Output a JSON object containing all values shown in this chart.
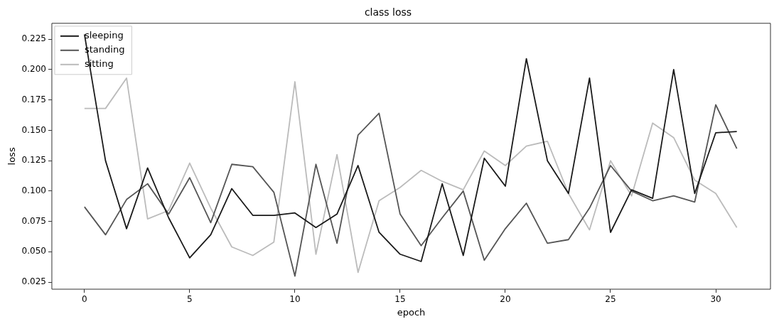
{
  "chart_data": {
    "type": "line",
    "title": "class loss",
    "xlabel": "epoch",
    "ylabel": "loss",
    "x": [
      0,
      1,
      2,
      3,
      4,
      5,
      6,
      7,
      8,
      9,
      10,
      11,
      12,
      13,
      14,
      15,
      16,
      17,
      18,
      19,
      20,
      21,
      22,
      23,
      24,
      25,
      26,
      27,
      28,
      29,
      30,
      31
    ],
    "series": [
      {
        "name": "sleeping",
        "color": "#1a1a1a",
        "values": [
          0.229,
          0.125,
          0.069,
          0.119,
          0.078,
          0.045,
          0.064,
          0.102,
          0.08,
          0.08,
          0.082,
          0.07,
          0.081,
          0.121,
          0.066,
          0.048,
          0.042,
          0.106,
          0.047,
          0.127,
          0.104,
          0.209,
          0.125,
          0.098,
          0.193,
          0.066,
          0.101,
          0.094,
          0.2,
          0.098,
          0.148,
          0.149
        ]
      },
      {
        "name": "standing",
        "color": "#555555",
        "values": [
          0.087,
          0.064,
          0.093,
          0.106,
          0.081,
          0.111,
          0.074,
          0.122,
          0.12,
          0.099,
          0.03,
          0.122,
          0.057,
          0.146,
          0.164,
          0.081,
          0.055,
          0.078,
          0.1,
          0.043,
          0.069,
          0.09,
          0.057,
          0.06,
          0.086,
          0.121,
          0.1,
          0.092,
          0.096,
          0.091,
          0.171,
          0.135
        ]
      },
      {
        "name": "sitting",
        "color": "#bbbbbb",
        "values": [
          0.168,
          0.168,
          0.193,
          0.077,
          0.084,
          0.123,
          0.086,
          0.054,
          0.047,
          0.058,
          0.19,
          0.048,
          0.13,
          0.033,
          0.092,
          0.103,
          0.117,
          0.108,
          0.101,
          0.133,
          0.121,
          0.137,
          0.141,
          0.098,
          0.068,
          0.125,
          0.096,
          0.156,
          0.144,
          0.109,
          0.098,
          0.07
        ]
      }
    ],
    "xlim": [
      -1.55,
      32.6
    ],
    "xticks": [
      0,
      5,
      10,
      15,
      20,
      25,
      30
    ],
    "ylim": [
      0.0192,
      0.2381
    ],
    "yticks": [
      {
        "value": 0.025,
        "label": "0.025"
      },
      {
        "value": 0.05,
        "label": "0.050"
      },
      {
        "value": 0.075,
        "label": "0.075"
      },
      {
        "value": 0.1,
        "label": "0.100"
      },
      {
        "value": 0.125,
        "label": "0.125"
      },
      {
        "value": 0.15,
        "label": "0.150"
      },
      {
        "value": 0.175,
        "label": "0.175"
      },
      {
        "value": 0.2,
        "label": "0.200"
      },
      {
        "value": 0.225,
        "label": "0.225"
      }
    ],
    "legend": "top left",
    "grid": false,
    "marker": "none",
    "line_style": "solid"
  }
}
